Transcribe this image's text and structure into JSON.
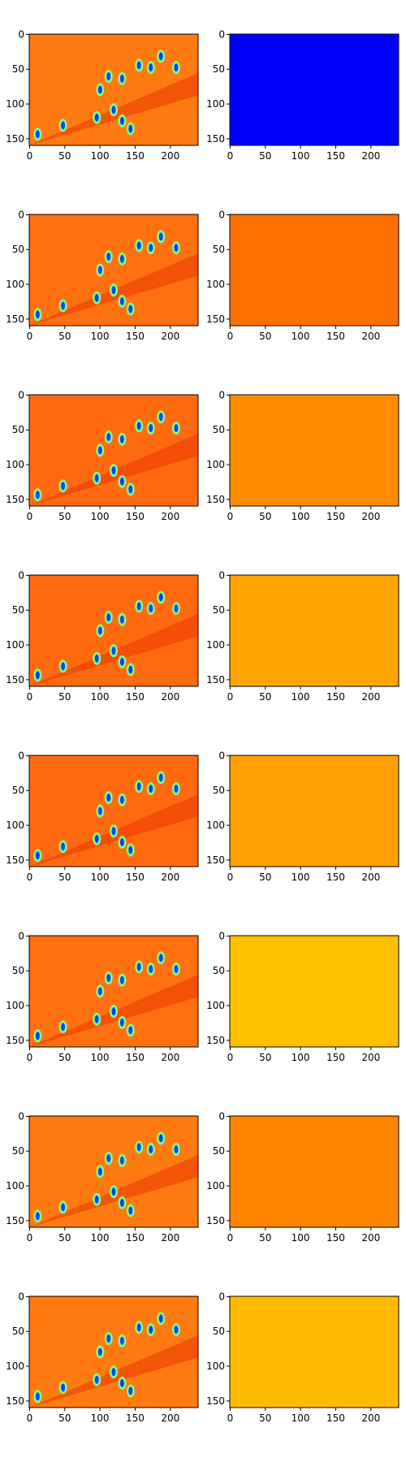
{
  "chart_data": [
    {
      "type": "image",
      "color": "#ff7a10",
      "xlim": [
        -0.5,
        239.5
      ],
      "ylim": [
        159.5,
        -0.5
      ],
      "xticks": [
        0,
        50,
        100,
        150,
        200
      ],
      "yticks": [
        0,
        50,
        100,
        150
      ]
    },
    {
      "type": "image",
      "color": "#0000ff",
      "xlim": [
        -0.5,
        239.5
      ],
      "ylim": [
        159.5,
        -0.5
      ],
      "xticks": [
        0,
        50,
        100,
        150,
        200
      ],
      "yticks": [
        0,
        50,
        100,
        150
      ]
    },
    {
      "type": "image",
      "color": "#ff7010",
      "xlim": [
        -0.5,
        239.5
      ],
      "ylim": [
        159.5,
        -0.5
      ],
      "xticks": [
        0,
        50,
        100,
        150,
        200
      ],
      "yticks": [
        0,
        50,
        100,
        150
      ]
    },
    {
      "type": "image",
      "color": "#ff7000",
      "xlim": [
        -0.5,
        239.5
      ],
      "ylim": [
        159.5,
        -0.5
      ],
      "xticks": [
        0,
        50,
        100,
        150,
        200
      ],
      "yticks": [
        0,
        50,
        100,
        150
      ]
    },
    {
      "type": "image",
      "color": "#ff6a10",
      "xlim": [
        -0.5,
        239.5
      ],
      "ylim": [
        159.5,
        -0.5
      ],
      "xticks": [
        0,
        50,
        100,
        150,
        200
      ],
      "yticks": [
        0,
        50,
        100,
        150
      ]
    },
    {
      "type": "image",
      "color": "#ff8c00",
      "xlim": [
        -0.5,
        239.5
      ],
      "ylim": [
        159.5,
        -0.5
      ],
      "xticks": [
        0,
        50,
        100,
        150,
        200
      ],
      "yticks": [
        0,
        50,
        100,
        150
      ]
    },
    {
      "type": "image",
      "color": "#ff6a10",
      "xlim": [
        -0.5,
        239.5
      ],
      "ylim": [
        159.5,
        -0.5
      ],
      "xticks": [
        0,
        50,
        100,
        150,
        200
      ],
      "yticks": [
        0,
        50,
        100,
        150
      ]
    },
    {
      "type": "image",
      "color": "#ffa500",
      "xlim": [
        -0.5,
        239.5
      ],
      "ylim": [
        159.5,
        -0.5
      ],
      "xticks": [
        0,
        50,
        100,
        150,
        200
      ],
      "yticks": [
        0,
        50,
        100,
        150
      ]
    },
    {
      "type": "image",
      "color": "#ff6a10",
      "xlim": [
        -0.5,
        239.5
      ],
      "ylim": [
        159.5,
        -0.5
      ],
      "xticks": [
        0,
        50,
        100,
        150,
        200
      ],
      "yticks": [
        0,
        50,
        100,
        150
      ]
    },
    {
      "type": "image",
      "color": "#ffa000",
      "xlim": [
        -0.5,
        239.5
      ],
      "ylim": [
        159.5,
        -0.5
      ],
      "xticks": [
        0,
        50,
        100,
        150,
        200
      ],
      "yticks": [
        0,
        50,
        100,
        150
      ]
    },
    {
      "type": "image",
      "color": "#ff7010",
      "xlim": [
        -0.5,
        239.5
      ],
      "ylim": [
        159.5,
        -0.5
      ],
      "xticks": [
        0,
        50,
        100,
        150,
        200
      ],
      "yticks": [
        0,
        50,
        100,
        150
      ]
    },
    {
      "type": "image",
      "color": "#ffc000",
      "xlim": [
        -0.5,
        239.5
      ],
      "ylim": [
        159.5,
        -0.5
      ],
      "xticks": [
        0,
        50,
        100,
        150,
        200
      ],
      "yticks": [
        0,
        50,
        100,
        150
      ]
    },
    {
      "type": "image",
      "color": "#ff7a10",
      "xlim": [
        -0.5,
        239.5
      ],
      "ylim": [
        159.5,
        -0.5
      ],
      "xticks": [
        0,
        50,
        100,
        150,
        200
      ],
      "yticks": [
        0,
        50,
        100,
        150
      ]
    },
    {
      "type": "image",
      "color": "#ff8500",
      "xlim": [
        -0.5,
        239.5
      ],
      "ylim": [
        159.5,
        -0.5
      ],
      "xticks": [
        0,
        50,
        100,
        150,
        200
      ],
      "yticks": [
        0,
        50,
        100,
        150
      ]
    },
    {
      "type": "image",
      "color": "#ff7a10",
      "xlim": [
        -0.5,
        239.5
      ],
      "ylim": [
        159.5,
        -0.5
      ],
      "xticks": [
        0,
        50,
        100,
        150,
        200
      ],
      "yticks": [
        0,
        50,
        100,
        150
      ]
    },
    {
      "type": "image",
      "color": "#ffbb00",
      "xlim": [
        -0.5,
        239.5
      ],
      "ylim": [
        159.5,
        -0.5
      ],
      "xticks": [
        0,
        50,
        100,
        150,
        200
      ],
      "yticks": [
        0,
        50,
        100,
        150
      ]
    }
  ]
}
